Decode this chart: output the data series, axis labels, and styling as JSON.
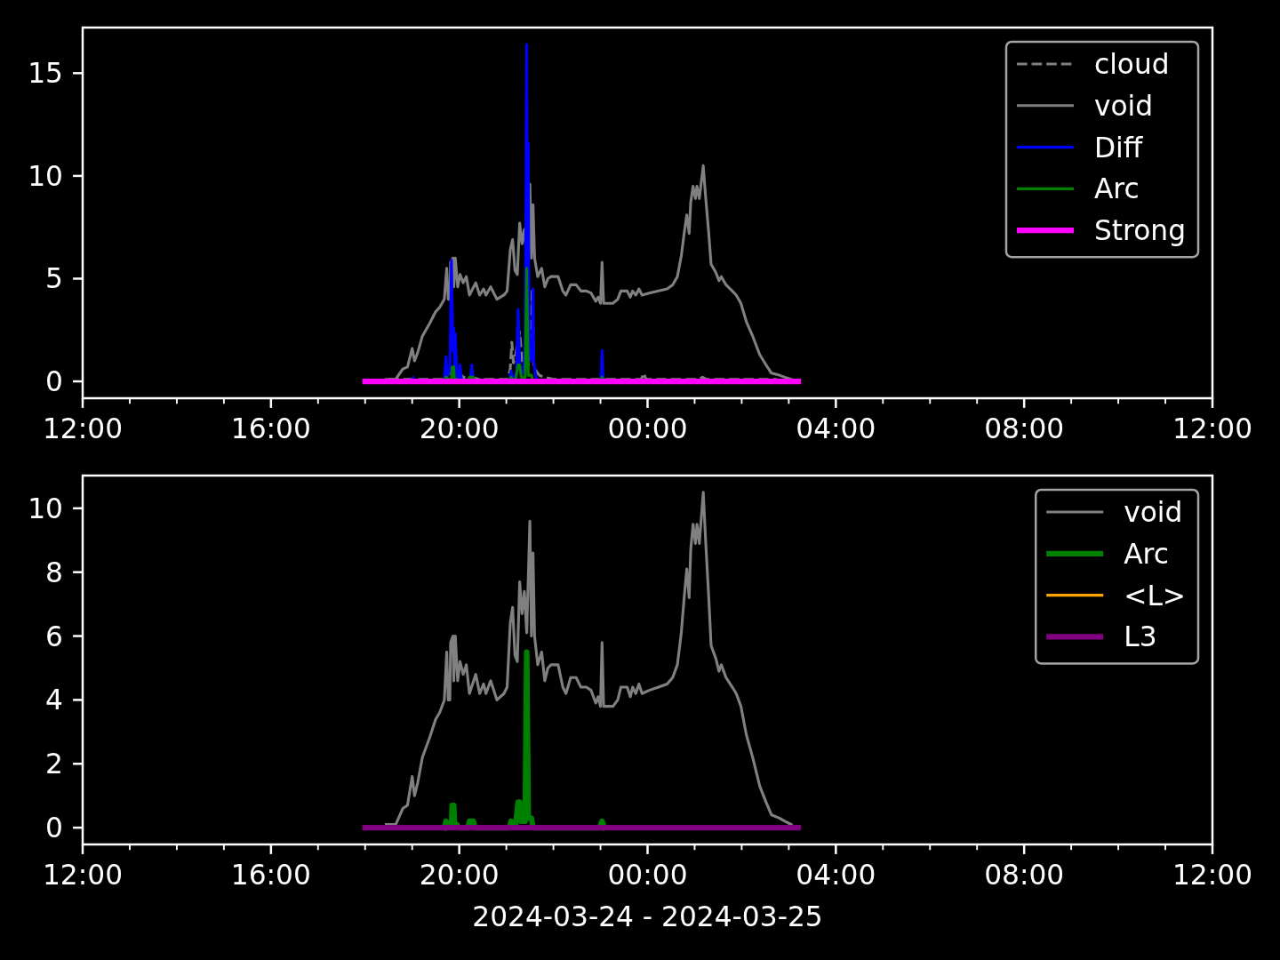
{
  "chart_data": [
    {
      "type": "line",
      "xlim": [
        "2024-03-24T12:00",
        "2024-03-25T12:00"
      ],
      "xticks": [
        {
          "value": "2024-03-24T12:00",
          "label": "12:00"
        },
        {
          "value": "2024-03-24T13:00",
          "label": null
        },
        {
          "value": "2024-03-24T14:00",
          "label": null
        },
        {
          "value": "2024-03-24T15:00",
          "label": null
        },
        {
          "value": "2024-03-24T16:00",
          "label": "16:00"
        },
        {
          "value": "2024-03-24T17:00",
          "label": null
        },
        {
          "value": "2024-03-24T18:00",
          "label": null
        },
        {
          "value": "2024-03-24T19:00",
          "label": null
        },
        {
          "value": "2024-03-24T20:00",
          "label": "20:00"
        },
        {
          "value": "2024-03-24T21:00",
          "label": null
        },
        {
          "value": "2024-03-24T22:00",
          "label": null
        },
        {
          "value": "2024-03-24T23:00",
          "label": null
        },
        {
          "value": "2024-03-25T00:00",
          "label": "00:00"
        },
        {
          "value": "2024-03-25T01:00",
          "label": null
        },
        {
          "value": "2024-03-25T02:00",
          "label": null
        },
        {
          "value": "2024-03-25T03:00",
          "label": null
        },
        {
          "value": "2024-03-25T04:00",
          "label": "04:00"
        },
        {
          "value": "2024-03-25T05:00",
          "label": null
        },
        {
          "value": "2024-03-25T06:00",
          "label": null
        },
        {
          "value": "2024-03-25T07:00",
          "label": null
        },
        {
          "value": "2024-03-25T08:00",
          "label": "08:00"
        },
        {
          "value": "2024-03-25T09:00",
          "label": null
        },
        {
          "value": "2024-03-25T10:00",
          "label": null
        },
        {
          "value": "2024-03-25T11:00",
          "label": null
        },
        {
          "value": "2024-03-25T12:00",
          "label": "12:00"
        }
      ],
      "ylim": [
        -0.82,
        17.22
      ],
      "yticks": [
        0,
        5,
        10,
        15
      ],
      "legend": "top right",
      "series": [
        {
          "name": "cloud",
          "color": "#808080",
          "line_style": "dashed",
          "x": [
            "2024-03-24T18:30",
            "2024-03-24T19:40",
            "2024-03-24T19:45",
            "2024-03-24T19:50",
            "2024-03-24T19:55",
            "2024-03-24T20:00",
            "2024-03-24T20:05",
            "2024-03-24T20:15",
            "2024-03-24T20:25",
            "2024-03-24T21:02",
            "2024-03-24T21:05",
            "2024-03-24T21:07",
            "2024-03-24T21:09",
            "2024-03-24T21:12",
            "2024-03-24T21:14",
            "2024-03-24T21:17",
            "2024-03-24T21:20",
            "2024-03-24T21:23",
            "2024-03-24T21:25",
            "2024-03-24T21:28",
            "2024-03-24T21:31",
            "2024-03-24T21:33",
            "2024-03-24T21:35",
            "2024-03-24T21:38",
            "2024-03-24T21:42",
            "2024-03-24T21:48",
            "2024-03-24T22:00",
            "2024-03-24T23:52",
            "2024-03-24T23:55",
            "2024-03-24T23:58",
            "2024-03-25T01:05",
            "2024-03-25T01:10",
            "2024-03-25T01:15",
            "2024-03-25T02:45"
          ],
          "values": [
            0.1,
            0.1,
            0.3,
            0.5,
            0.3,
            0.4,
            0.2,
            0.2,
            0.1,
            0.1,
            0.6,
            1.9,
            0.9,
            1.3,
            1.8,
            2.4,
            1.0,
            0.6,
            1.2,
            0.8,
            1.5,
            4.4,
            0.8,
            0.5,
            0.3,
            0.2,
            0.1,
            0.1,
            0.4,
            0.1,
            0.1,
            0.2,
            0.1,
            0.1
          ]
        },
        {
          "name": "void",
          "color": "#808080",
          "x": [
            "2024-03-24T18:27",
            "2024-03-24T18:39",
            "2024-03-24T18:48",
            "2024-03-24T18:54",
            "2024-03-24T19:00",
            "2024-03-24T19:03",
            "2024-03-24T19:07",
            "2024-03-24T19:13",
            "2024-03-24T19:22",
            "2024-03-24T19:30",
            "2024-03-24T19:35",
            "2024-03-24T19:41",
            "2024-03-24T19:44",
            "2024-03-24T19:46",
            "2024-03-24T19:48",
            "2024-03-24T19:49",
            "2024-03-24T19:52",
            "2024-03-24T19:53",
            "2024-03-24T19:55",
            "2024-03-24T19:58",
            "2024-03-24T20:01",
            "2024-03-24T20:05",
            "2024-03-24T20:09",
            "2024-03-24T20:13",
            "2024-03-24T20:21",
            "2024-03-24T20:26",
            "2024-03-24T20:31",
            "2024-03-24T20:34",
            "2024-03-24T20:40",
            "2024-03-24T20:48",
            "2024-03-24T20:57",
            "2024-03-24T21:01",
            "2024-03-24T21:05",
            "2024-03-24T21:08",
            "2024-03-24T21:11",
            "2024-03-24T21:14",
            "2024-03-24T21:17",
            "2024-03-24T21:20",
            "2024-03-24T21:23",
            "2024-03-24T21:26",
            "2024-03-24T21:30",
            "2024-03-24T21:32",
            "2024-03-24T21:34",
            "2024-03-24T21:36",
            "2024-03-24T21:40",
            "2024-03-24T21:45",
            "2024-03-24T21:49",
            "2024-03-24T21:53",
            "2024-03-24T21:57",
            "2024-03-24T22:06",
            "2024-03-24T22:12",
            "2024-03-24T22:16",
            "2024-03-24T22:22",
            "2024-03-24T22:29",
            "2024-03-24T22:35",
            "2024-03-24T22:42",
            "2024-03-24T22:48",
            "2024-03-24T22:54",
            "2024-03-24T22:57",
            "2024-03-24T23:00",
            "2024-03-24T23:02",
            "2024-03-24T23:04",
            "2024-03-24T23:16",
            "2024-03-24T23:22",
            "2024-03-24T23:26",
            "2024-03-24T23:34",
            "2024-03-24T23:38",
            "2024-03-24T23:41",
            "2024-03-24T23:45",
            "2024-03-24T23:49",
            "2024-03-24T23:53",
            "2024-03-25T00:02",
            "2024-03-25T00:14",
            "2024-03-25T00:25",
            "2024-03-25T00:32",
            "2024-03-25T00:38",
            "2024-03-25T00:43",
            "2024-03-25T00:47",
            "2024-03-25T00:50",
            "2024-03-25T00:53",
            "2024-03-25T00:55",
            "2024-03-25T00:58",
            "2024-03-25T01:01",
            "2024-03-25T01:03",
            "2024-03-25T01:06",
            "2024-03-25T01:11",
            "2024-03-25T01:14",
            "2024-03-25T01:18",
            "2024-03-25T01:21",
            "2024-03-25T01:27",
            "2024-03-25T01:31",
            "2024-03-25T01:34",
            "2024-03-25T01:40",
            "2024-03-25T01:48",
            "2024-03-25T01:53",
            "2024-03-25T01:59",
            "2024-03-25T02:06",
            "2024-03-25T02:14",
            "2024-03-25T02:23",
            "2024-03-25T02:31",
            "2024-03-25T02:38",
            "2024-03-25T02:48",
            "2024-03-25T02:55",
            "2024-03-25T03:03"
          ],
          "values": [
            0.1,
            0.1,
            0.6,
            0.7,
            1.6,
            1.0,
            1.4,
            2.2,
            2.8,
            3.4,
            3.6,
            4.0,
            5.5,
            4.0,
            4.0,
            5.8,
            6.0,
            4.6,
            6.0,
            4.6,
            5.2,
            4.8,
            5.1,
            4.2,
            4.8,
            4.2,
            4.5,
            4.2,
            4.6,
            4.0,
            4.2,
            4.4,
            6.4,
            6.9,
            5.4,
            5.2,
            7.7,
            6.7,
            7.4,
            6.1,
            9.6,
            6.0,
            8.6,
            6.0,
            5.1,
            5.5,
            4.6,
            5.0,
            5.1,
            5.1,
            4.4,
            4.2,
            4.7,
            4.7,
            4.4,
            4.4,
            4.3,
            3.9,
            4.1,
            3.8,
            5.8,
            3.8,
            3.8,
            4.0,
            4.4,
            4.4,
            4.1,
            4.4,
            4.2,
            4.5,
            4.2,
            4.3,
            4.4,
            4.5,
            4.7,
            5.1,
            6.1,
            7.3,
            8.1,
            7.2,
            8.7,
            9.5,
            8.9,
            9.5,
            8.9,
            10.5,
            9.0,
            7.2,
            5.7,
            5.3,
            4.9,
            5.1,
            4.7,
            4.4,
            4.2,
            3.8,
            2.9,
            2.2,
            1.3,
            0.8,
            0.4,
            0.3,
            0.2,
            0.1
          ]
        },
        {
          "name": "Diff",
          "color": "#0000ff",
          "x": [
            "2024-03-24T19:00",
            "2024-03-24T19:01",
            "2024-03-24T19:02",
            "2024-03-24T19:41",
            "2024-03-24T19:43",
            "2024-03-24T19:45",
            "2024-03-24T19:48",
            "2024-03-24T19:50",
            "2024-03-24T19:52",
            "2024-03-24T19:53",
            "2024-03-24T19:54",
            "2024-03-24T19:55",
            "2024-03-24T19:57",
            "2024-03-24T19:59",
            "2024-03-24T20:01",
            "2024-03-24T20:03",
            "2024-03-24T20:14",
            "2024-03-24T20:16",
            "2024-03-24T20:18",
            "2024-03-24T21:04",
            "2024-03-24T21:06",
            "2024-03-24T21:09",
            "2024-03-24T21:13",
            "2024-03-24T21:15",
            "2024-03-24T21:17",
            "2024-03-24T21:19",
            "2024-03-24T21:22",
            "2024-03-24T21:24",
            "2024-03-24T21:26",
            "2024-03-24T21:27",
            "2024-03-24T21:28",
            "2024-03-24T21:29",
            "2024-03-24T21:31",
            "2024-03-24T21:33",
            "2024-03-24T21:34",
            "2024-03-24T21:35",
            "2024-03-24T21:37",
            "2024-03-24T21:39",
            "2024-03-24T23:00",
            "2024-03-24T23:01",
            "2024-03-24T23:02",
            "2024-03-24T23:03",
            "2024-03-24T23:04"
          ],
          "values": [
            0,
            0.2,
            0,
            0,
            1.2,
            0.3,
            0.5,
            5.9,
            1.5,
            2.6,
            0.8,
            2.3,
            0.3,
            0,
            0.8,
            0,
            0,
            0.8,
            0,
            0,
            0.5,
            0,
            0.5,
            3.5,
            1.0,
            0.3,
            0.5,
            2.0,
            16.4,
            5.0,
            11.6,
            2.5,
            1.0,
            2.0,
            4.5,
            1.0,
            0.4,
            0,
            0,
            0.4,
            1.5,
            0.4,
            0
          ]
        },
        {
          "name": "Arc",
          "color": "#008000",
          "x": [
            "2024-03-24T19:41",
            "2024-03-24T19:43",
            "2024-03-24T19:46",
            "2024-03-24T19:50",
            "2024-03-24T19:51",
            "2024-03-24T19:53",
            "2024-03-24T19:54",
            "2024-03-24T19:57",
            "2024-03-24T19:59",
            "2024-03-24T20:11",
            "2024-03-24T20:13",
            "2024-03-24T20:18",
            "2024-03-24T20:20",
            "2024-03-24T21:04",
            "2024-03-24T21:06",
            "2024-03-24T21:08",
            "2024-03-24T21:12",
            "2024-03-24T21:15",
            "2024-03-24T21:17",
            "2024-03-24T21:19",
            "2024-03-24T21:24",
            "2024-03-24T21:26",
            "2024-03-24T21:28",
            "2024-03-24T21:32",
            "2024-03-24T21:34",
            "2024-03-24T22:59",
            "2024-03-24T23:02",
            "2024-03-24T23:05"
          ],
          "values": [
            0,
            0.2,
            0.1,
            0.1,
            0.7,
            0.7,
            0.1,
            0.1,
            0,
            0,
            0.2,
            0.2,
            0,
            0,
            0.2,
            0.1,
            0.1,
            0.8,
            0.8,
            0.2,
            0.2,
            5.5,
            0.3,
            0.3,
            0,
            0,
            0.2,
            0
          ]
        },
        {
          "name": "Strong",
          "color": "#ff00ff",
          "x": [
            "2024-03-24T18:00",
            "2024-03-25T03:12"
          ],
          "values": [
            0,
            0
          ]
        }
      ]
    },
    {
      "type": "line",
      "xlabel": "2024-03-24 - 2024-03-25",
      "xlim": [
        "2024-03-24T12:00",
        "2024-03-25T12:00"
      ],
      "xticks": [
        {
          "value": "2024-03-24T12:00",
          "label": "12:00"
        },
        {
          "value": "2024-03-24T13:00",
          "label": null
        },
        {
          "value": "2024-03-24T14:00",
          "label": null
        },
        {
          "value": "2024-03-24T15:00",
          "label": null
        },
        {
          "value": "2024-03-24T16:00",
          "label": "16:00"
        },
        {
          "value": "2024-03-24T17:00",
          "label": null
        },
        {
          "value": "2024-03-24T18:00",
          "label": null
        },
        {
          "value": "2024-03-24T19:00",
          "label": null
        },
        {
          "value": "2024-03-24T20:00",
          "label": "20:00"
        },
        {
          "value": "2024-03-24T21:00",
          "label": null
        },
        {
          "value": "2024-03-24T22:00",
          "label": null
        },
        {
          "value": "2024-03-24T23:00",
          "label": null
        },
        {
          "value": "2024-03-25T00:00",
          "label": "00:00"
        },
        {
          "value": "2024-03-25T01:00",
          "label": null
        },
        {
          "value": "2024-03-25T02:00",
          "label": null
        },
        {
          "value": "2024-03-25T03:00",
          "label": null
        },
        {
          "value": "2024-03-25T04:00",
          "label": "04:00"
        },
        {
          "value": "2024-03-25T05:00",
          "label": null
        },
        {
          "value": "2024-03-25T06:00",
          "label": null
        },
        {
          "value": "2024-03-25T07:00",
          "label": null
        },
        {
          "value": "2024-03-25T08:00",
          "label": "08:00"
        },
        {
          "value": "2024-03-25T09:00",
          "label": null
        },
        {
          "value": "2024-03-25T10:00",
          "label": null
        },
        {
          "value": "2024-03-25T11:00",
          "label": null
        },
        {
          "value": "2024-03-25T12:00",
          "label": "12:00"
        }
      ],
      "ylim": [
        -0.525,
        11.025
      ],
      "yticks": [
        0,
        2,
        4,
        6,
        8,
        10
      ],
      "legend": "top right",
      "series": [
        {
          "name": "void",
          "color": "#808080",
          "x": [
            "2024-03-24T18:27",
            "2024-03-24T18:39",
            "2024-03-24T18:48",
            "2024-03-24T18:54",
            "2024-03-24T19:00",
            "2024-03-24T19:03",
            "2024-03-24T19:07",
            "2024-03-24T19:13",
            "2024-03-24T19:22",
            "2024-03-24T19:30",
            "2024-03-24T19:35",
            "2024-03-24T19:41",
            "2024-03-24T19:44",
            "2024-03-24T19:46",
            "2024-03-24T19:48",
            "2024-03-24T19:49",
            "2024-03-24T19:52",
            "2024-03-24T19:53",
            "2024-03-24T19:55",
            "2024-03-24T19:58",
            "2024-03-24T20:01",
            "2024-03-24T20:05",
            "2024-03-24T20:09",
            "2024-03-24T20:13",
            "2024-03-24T20:21",
            "2024-03-24T20:26",
            "2024-03-24T20:31",
            "2024-03-24T20:34",
            "2024-03-24T20:40",
            "2024-03-24T20:48",
            "2024-03-24T20:57",
            "2024-03-24T21:01",
            "2024-03-24T21:05",
            "2024-03-24T21:08",
            "2024-03-24T21:11",
            "2024-03-24T21:14",
            "2024-03-24T21:17",
            "2024-03-24T21:20",
            "2024-03-24T21:23",
            "2024-03-24T21:26",
            "2024-03-24T21:30",
            "2024-03-24T21:32",
            "2024-03-24T21:34",
            "2024-03-24T21:36",
            "2024-03-24T21:40",
            "2024-03-24T21:45",
            "2024-03-24T21:49",
            "2024-03-24T21:53",
            "2024-03-24T21:57",
            "2024-03-24T22:06",
            "2024-03-24T22:12",
            "2024-03-24T22:16",
            "2024-03-24T22:22",
            "2024-03-24T22:29",
            "2024-03-24T22:35",
            "2024-03-24T22:42",
            "2024-03-24T22:48",
            "2024-03-24T22:54",
            "2024-03-24T22:57",
            "2024-03-24T23:00",
            "2024-03-24T23:02",
            "2024-03-24T23:04",
            "2024-03-24T23:16",
            "2024-03-24T23:22",
            "2024-03-24T23:26",
            "2024-03-24T23:34",
            "2024-03-24T23:38",
            "2024-03-24T23:41",
            "2024-03-24T23:45",
            "2024-03-24T23:49",
            "2024-03-24T23:53",
            "2024-03-25T00:02",
            "2024-03-25T00:14",
            "2024-03-25T00:25",
            "2024-03-25T00:32",
            "2024-03-25T00:38",
            "2024-03-25T00:43",
            "2024-03-25T00:47",
            "2024-03-25T00:50",
            "2024-03-25T00:53",
            "2024-03-25T00:55",
            "2024-03-25T00:58",
            "2024-03-25T01:01",
            "2024-03-25T01:03",
            "2024-03-25T01:06",
            "2024-03-25T01:11",
            "2024-03-25T01:14",
            "2024-03-25T01:18",
            "2024-03-25T01:21",
            "2024-03-25T01:27",
            "2024-03-25T01:31",
            "2024-03-25T01:34",
            "2024-03-25T01:40",
            "2024-03-25T01:48",
            "2024-03-25T01:53",
            "2024-03-25T01:59",
            "2024-03-25T02:06",
            "2024-03-25T02:14",
            "2024-03-25T02:23",
            "2024-03-25T02:31",
            "2024-03-25T02:38",
            "2024-03-25T02:48",
            "2024-03-25T02:55",
            "2024-03-25T03:03"
          ],
          "values": [
            0.1,
            0.1,
            0.6,
            0.7,
            1.6,
            1.0,
            1.4,
            2.2,
            2.8,
            3.4,
            3.6,
            4.0,
            5.5,
            4.0,
            4.0,
            5.8,
            6.0,
            4.6,
            6.0,
            4.6,
            5.2,
            4.8,
            5.1,
            4.2,
            4.8,
            4.2,
            4.5,
            4.2,
            4.6,
            4.0,
            4.2,
            4.4,
            6.4,
            6.9,
            5.4,
            5.2,
            7.7,
            6.7,
            7.4,
            6.1,
            9.6,
            6.0,
            8.6,
            6.0,
            5.1,
            5.5,
            4.6,
            5.0,
            5.1,
            5.1,
            4.4,
            4.2,
            4.7,
            4.7,
            4.4,
            4.4,
            4.3,
            3.9,
            4.1,
            3.8,
            5.8,
            3.8,
            3.8,
            4.0,
            4.4,
            4.4,
            4.1,
            4.4,
            4.2,
            4.5,
            4.2,
            4.3,
            4.4,
            4.5,
            4.7,
            5.1,
            6.1,
            7.3,
            8.1,
            7.2,
            8.7,
            9.5,
            8.9,
            9.5,
            8.9,
            10.5,
            9.0,
            7.2,
            5.7,
            5.3,
            4.9,
            5.1,
            4.7,
            4.4,
            4.2,
            3.8,
            2.9,
            2.2,
            1.3,
            0.8,
            0.4,
            0.3,
            0.2,
            0.1
          ]
        },
        {
          "name": "Arc",
          "color": "#008000",
          "x": [
            "2024-03-24T19:41",
            "2024-03-24T19:43",
            "2024-03-24T19:46",
            "2024-03-24T19:50",
            "2024-03-24T19:51",
            "2024-03-24T19:53",
            "2024-03-24T19:54",
            "2024-03-24T19:57",
            "2024-03-24T19:59",
            "2024-03-24T20:11",
            "2024-03-24T20:13",
            "2024-03-24T20:18",
            "2024-03-24T20:20",
            "2024-03-24T21:04",
            "2024-03-24T21:06",
            "2024-03-24T21:08",
            "2024-03-24T21:12",
            "2024-03-24T21:15",
            "2024-03-24T21:17",
            "2024-03-24T21:19",
            "2024-03-24T21:24",
            "2024-03-24T21:26",
            "2024-03-24T21:28",
            "2024-03-24T21:32",
            "2024-03-24T21:34",
            "2024-03-24T22:59",
            "2024-03-24T23:02",
            "2024-03-24T23:05"
          ],
          "values": [
            0,
            0.2,
            0.1,
            0.1,
            0.7,
            0.7,
            0.1,
            0.1,
            0,
            0,
            0.2,
            0.2,
            0,
            0,
            0.2,
            0.1,
            0.1,
            0.8,
            0.8,
            0.2,
            0.2,
            5.5,
            0.3,
            0.3,
            0,
            0,
            0.2,
            0
          ]
        },
        {
          "name": "<L>",
          "color": "#ffa500"
        },
        {
          "name": "L3",
          "color": "#800080",
          "x": [
            "2024-03-24T18:00",
            "2024-03-25T03:12"
          ],
          "values": [
            0,
            0
          ]
        }
      ]
    }
  ]
}
